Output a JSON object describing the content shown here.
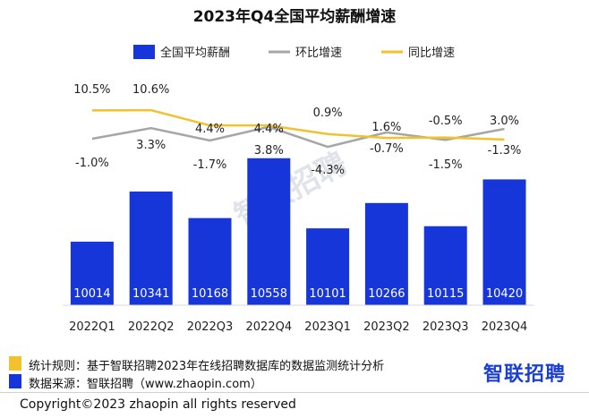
{
  "chart_data": {
    "type": "bar",
    "title": "2023年Q4全国平均薪酬增速",
    "categories": [
      "2022Q1",
      "2022Q2",
      "2022Q3",
      "2022Q4",
      "2023Q1",
      "2023Q2",
      "2023Q3",
      "2023Q4"
    ],
    "series": [
      {
        "name": "全国平均薪酬",
        "type": "bar",
        "color": "#1636d9",
        "values": [
          10014,
          10341,
          10168,
          10558,
          10101,
          10266,
          10115,
          10420
        ]
      },
      {
        "name": "环比增速",
        "type": "line",
        "color": "#a6a6a6",
        "values": [
          -1.0,
          3.3,
          -1.7,
          3.8,
          -4.3,
          1.6,
          -1.5,
          3.0
        ],
        "labels": [
          "-1.0%",
          "3.3%",
          "-1.7%",
          "3.8%",
          "-4.3%",
          "1.6%",
          "-1.5%",
          "3.0%"
        ]
      },
      {
        "name": "同比增速",
        "type": "line",
        "color": "#f2c12e",
        "values": [
          10.5,
          10.6,
          4.4,
          4.4,
          0.9,
          -0.7,
          -0.5,
          -1.3
        ],
        "labels": [
          "10.5%",
          "10.6%",
          "4.4%",
          "4.4%",
          "0.9%",
          "-0.7%",
          "-0.5%",
          "-1.3%"
        ]
      }
    ],
    "legend_position": "top",
    "grid": false
  },
  "watermark": "智联招聘",
  "notes": {
    "rule_color": "#f2c12e",
    "rule_text": "统计规则：基于智联招聘2023年在线招聘数据库的数据监测统计分析",
    "source_color": "#1636d9",
    "source_text": "数据来源：智联招聘（www.zhaopin.com）"
  },
  "logo_text": "智联招聘",
  "copyright": "Copyright©2023 zhaopin all rights reserved"
}
